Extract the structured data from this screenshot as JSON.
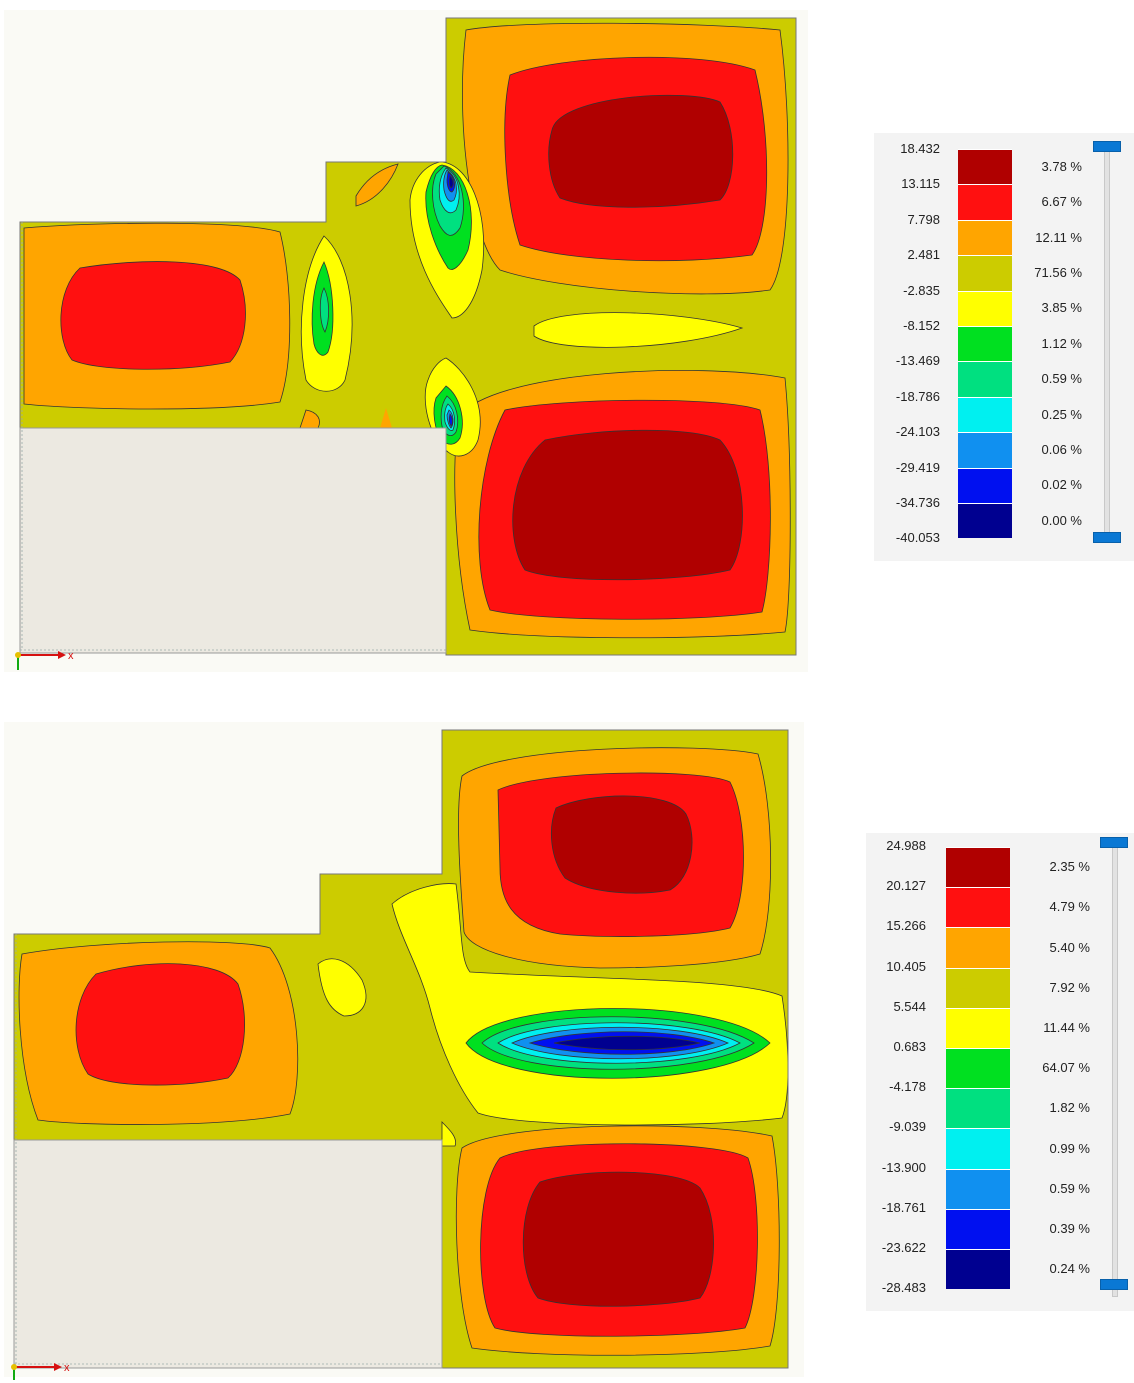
{
  "contour_plots": [
    {
      "axis_label": "x",
      "legend": {
        "values": [
          "18.432",
          "13.115",
          "7.798",
          "2.481",
          "-2.835",
          "-8.152",
          "-13.469",
          "-18.786",
          "-24.103",
          "-29.419",
          "-34.736",
          "-40.053"
        ],
        "bands": [
          {
            "color": "#b00000",
            "percent": "3.78 %"
          },
          {
            "color": "#ff1010",
            "percent": "6.67 %"
          },
          {
            "color": "#ffa500",
            "percent": "12.11 %"
          },
          {
            "color": "#cccc00",
            "percent": "71.56 %"
          },
          {
            "color": "#ffff00",
            "percent": "3.85 %"
          },
          {
            "color": "#00e020",
            "percent": "1.12 %"
          },
          {
            "color": "#00e080",
            "percent": "0.59 %"
          },
          {
            "color": "#00f0f0",
            "percent": "0.25 %"
          },
          {
            "color": "#1090f0",
            "percent": "0.06 %"
          },
          {
            "color": "#0010f0",
            "percent": "0.02 %"
          },
          {
            "color": "#000090",
            "percent": "0.00 %"
          }
        ]
      }
    },
    {
      "axis_label": "x",
      "legend": {
        "values": [
          "24.988",
          "20.127",
          "15.266",
          "10.405",
          "5.544",
          "0.683",
          "-4.178",
          "-9.039",
          "-13.900",
          "-18.761",
          "-23.622",
          "-28.483"
        ],
        "bands": [
          {
            "color": "#b00000",
            "percent": "2.35 %"
          },
          {
            "color": "#ff1010",
            "percent": "4.79 %"
          },
          {
            "color": "#ffa500",
            "percent": "5.40 %"
          },
          {
            "color": "#cccc00",
            "percent": "7.92 %"
          },
          {
            "color": "#ffff00",
            "percent": "11.44 %"
          },
          {
            "color": "#00e020",
            "percent": "64.07 %"
          },
          {
            "color": "#00e080",
            "percent": "1.82 %"
          },
          {
            "color": "#00f0f0",
            "percent": "0.99 %"
          },
          {
            "color": "#1090f0",
            "percent": "0.59 %"
          },
          {
            "color": "#0010f0",
            "percent": "0.39 %"
          },
          {
            "color": "#000090",
            "percent": "0.24 %"
          }
        ]
      }
    }
  ]
}
